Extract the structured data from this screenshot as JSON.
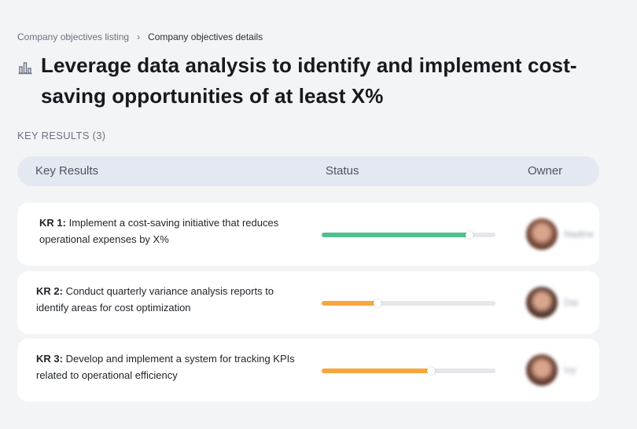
{
  "breadcrumb": {
    "parent": "Company objectives listing",
    "separator": "›",
    "current": "Company objectives details"
  },
  "title_icon": "bar-chart-icon",
  "title": "Leverage data analysis to identify and implement cost-saving opportunities of at least X%",
  "section_label": "KEY RESULTS (3)",
  "table_header": {
    "key_results": "Key Results",
    "status": "Status",
    "owner": "Owner"
  },
  "key_results": [
    {
      "id": "KR 1:",
      "text": "Implement a cost-saving initiative that reduces operational expenses by X%",
      "progress": 0.85,
      "color": "#4fc08d",
      "owner": "Nadine",
      "avatar_color": "#7a4a3a"
    },
    {
      "id": "KR 2:",
      "text": "Conduct quarterly variance analysis reports to identify areas for cost optimization",
      "progress": 0.32,
      "color": "#f6a63c",
      "owner": "Dai",
      "avatar_color": "#5a3b30"
    },
    {
      "id": "KR 3:",
      "text": "Develop and implement a system for tracking KPIs related to operational efficiency",
      "progress": 0.63,
      "color": "#f6a63c",
      "owner": "Ivy",
      "avatar_color": "#6b4034"
    }
  ]
}
